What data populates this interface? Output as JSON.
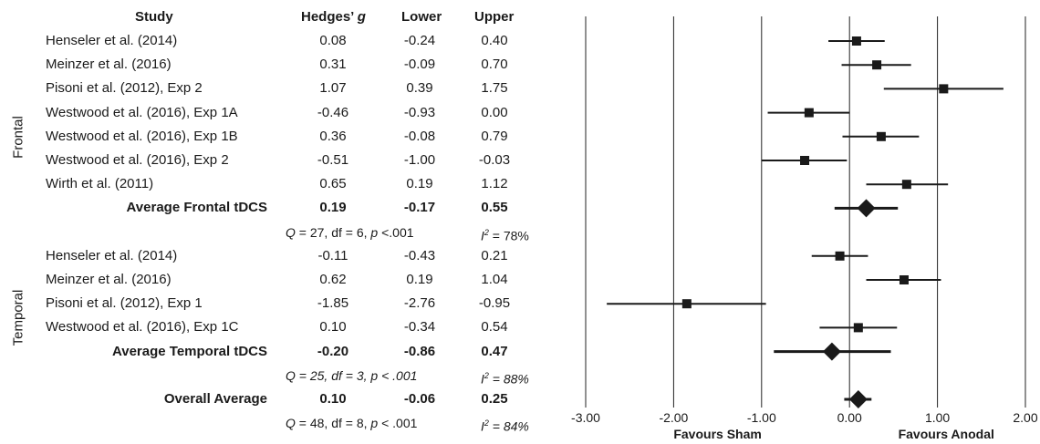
{
  "headers": {
    "study": "Study",
    "hedges_prefix": "Hedges’ ",
    "hedges_g": "g",
    "lower": "Lower",
    "upper": "Upper"
  },
  "groups": {
    "frontal": "Frontal",
    "temporal": "Temporal"
  },
  "rows": [
    {
      "study": "Henseler et al. (2014)",
      "g": "0.08",
      "lower": "-0.24",
      "upper": "0.40"
    },
    {
      "study": "Meinzer et al. (2016)",
      "g": "0.31",
      "lower": "-0.09",
      "upper": "0.70"
    },
    {
      "study": "Pisoni et al. (2012), Exp 2",
      "g": "1.07",
      "lower": "0.39",
      "upper": "1.75"
    },
    {
      "study": "Westwood et al. (2016), Exp 1A",
      "g": "-0.46",
      "lower": "-0.93",
      "upper": "0.00"
    },
    {
      "study": "Westwood et al. (2016), Exp 1B",
      "g": "0.36",
      "lower": "-0.08",
      "upper": "0.79"
    },
    {
      "study": "Westwood et al. (2016), Exp 2",
      "g": "-0.51",
      "lower": "-1.00",
      "upper": "-0.03"
    },
    {
      "study": "Wirth et al. (2011)",
      "g": "0.65",
      "lower": "0.19",
      "upper": "1.12"
    },
    {
      "study": "Average Frontal tDCS",
      "g": "0.19",
      "lower": "-0.17",
      "upper": "0.55",
      "summary": true
    },
    {
      "stat": true,
      "q": "Q",
      "q_rest": " = 27, df = 6, ",
      "p": "p",
      "p_rest": " <.001",
      "i": "I",
      "i_sup": "2",
      "i_rest": " = 78%"
    },
    {
      "study": "Henseler et al. (2014)",
      "g": "-0.11",
      "lower": "-0.43",
      "upper": "0.21"
    },
    {
      "study": "Meinzer et al. (2016)",
      "g": "0.62",
      "lower": "0.19",
      "upper": "1.04"
    },
    {
      "study": "Pisoni et al. (2012), Exp 1",
      "g": "-1.85",
      "lower": "-2.76",
      "upper": "-0.95"
    },
    {
      "study": "Westwood et al. (2016), Exp 1C",
      "g": "0.10",
      "lower": "-0.34",
      "upper": "0.54"
    },
    {
      "study": "Average Temporal tDCS",
      "g": "-0.20",
      "lower": "-0.86",
      "upper": "0.47",
      "summary": true
    },
    {
      "stat": true,
      "italic_all": true,
      "q": "Q",
      "q_rest": " = 25, df = 3, ",
      "p": "p",
      "p_rest": " < .001",
      "i": "I",
      "i_sup": "2",
      "i_rest": " = 88%"
    },
    {
      "study": "Overall Average",
      "g": "0.10",
      "lower": "-0.06",
      "upper": "0.25",
      "summary": true
    },
    {
      "stat": true,
      "q": "Q",
      "q_rest": " = 48, df = 8, ",
      "p": "p",
      "p_rest": " < .001",
      "i": "I",
      "i_sup": "2",
      "i_rest": " = 84%",
      "i_italic_rest": true
    }
  ],
  "chart_data": {
    "type": "scatter",
    "subtype": "forest-plot",
    "xlim": [
      -3.0,
      2.0
    ],
    "xticks": [
      "-3.00",
      "-2.00",
      "-1.00",
      "0.00",
      "1.00",
      "2.00"
    ],
    "xtick_values": [
      -3,
      -2,
      -1,
      0,
      1,
      2
    ],
    "axis_labels": {
      "left": "Favours Sham",
      "right": "Favours Anodal"
    },
    "grid": true,
    "points": [
      {
        "g": 0.08,
        "lower": -0.24,
        "upper": 0.4,
        "kind": "study"
      },
      {
        "g": 0.31,
        "lower": -0.09,
        "upper": 0.7,
        "kind": "study"
      },
      {
        "g": 1.07,
        "lower": 0.39,
        "upper": 1.75,
        "kind": "study"
      },
      {
        "g": -0.46,
        "lower": -0.93,
        "upper": 0.0,
        "kind": "study"
      },
      {
        "g": 0.36,
        "lower": -0.08,
        "upper": 0.79,
        "kind": "study"
      },
      {
        "g": -0.51,
        "lower": -1.0,
        "upper": -0.03,
        "kind": "study"
      },
      {
        "g": 0.65,
        "lower": 0.19,
        "upper": 1.12,
        "kind": "study"
      },
      {
        "g": 0.19,
        "lower": -0.17,
        "upper": 0.55,
        "kind": "summary"
      },
      null,
      {
        "g": -0.11,
        "lower": -0.43,
        "upper": 0.21,
        "kind": "study"
      },
      {
        "g": 0.62,
        "lower": 0.19,
        "upper": 1.04,
        "kind": "study"
      },
      {
        "g": -1.85,
        "lower": -2.76,
        "upper": -0.95,
        "kind": "study"
      },
      {
        "g": 0.1,
        "lower": -0.34,
        "upper": 0.54,
        "kind": "study"
      },
      {
        "g": -0.2,
        "lower": -0.86,
        "upper": 0.47,
        "kind": "summary"
      },
      null,
      {
        "g": 0.1,
        "lower": -0.06,
        "upper": 0.25,
        "kind": "summary"
      }
    ]
  }
}
